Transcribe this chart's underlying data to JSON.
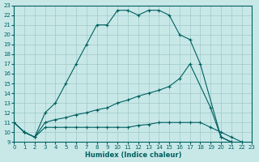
{
  "xlabel": "Humidex (Indice chaleur)",
  "background_color": "#c8e8e8",
  "grid_color": "#a0c8c8",
  "line_color": "#006060",
  "xlim": [
    0,
    23
  ],
  "ylim": [
    9,
    23
  ],
  "xticks": [
    0,
    1,
    2,
    3,
    4,
    5,
    6,
    7,
    8,
    9,
    10,
    11,
    12,
    13,
    14,
    15,
    16,
    17,
    18,
    19,
    20,
    21,
    22,
    23
  ],
  "yticks": [
    9,
    10,
    11,
    12,
    13,
    14,
    15,
    16,
    17,
    18,
    19,
    20,
    21,
    22,
    23
  ],
  "curve1_x": [
    0,
    1,
    2,
    3,
    4,
    5,
    6,
    7,
    8,
    9,
    10,
    11,
    12,
    13,
    14,
    15,
    16,
    17,
    18,
    20,
    21
  ],
  "curve1_y": [
    11,
    10,
    9.5,
    12,
    13,
    15,
    17,
    19,
    21,
    21,
    22.5,
    22.5,
    22,
    22.5,
    22.5,
    22,
    20,
    19.5,
    17,
    9.5,
    9
  ],
  "curve2_x": [
    0,
    1,
    2,
    3,
    4,
    5,
    6,
    7,
    8,
    9,
    10,
    11,
    12,
    13,
    14,
    15,
    16,
    17,
    19,
    20,
    21
  ],
  "curve2_y": [
    11,
    10,
    9.5,
    11,
    11.3,
    11.5,
    11.8,
    12,
    12.3,
    12.5,
    13,
    13.3,
    13.7,
    14,
    14.3,
    14.7,
    15.5,
    17,
    12.5,
    9.5,
    9
  ],
  "curve3_x": [
    0,
    1,
    2,
    3,
    4,
    5,
    6,
    7,
    8,
    9,
    10,
    11,
    12,
    13,
    14,
    15,
    16,
    17,
    18,
    19,
    20,
    21,
    22
  ],
  "curve3_y": [
    11,
    10,
    9.5,
    10.5,
    10.5,
    10.5,
    10.5,
    10.5,
    10.5,
    10.5,
    10.5,
    10.5,
    10.7,
    10.8,
    11,
    11,
    11,
    11,
    11,
    10.5,
    10,
    9.5,
    9
  ]
}
